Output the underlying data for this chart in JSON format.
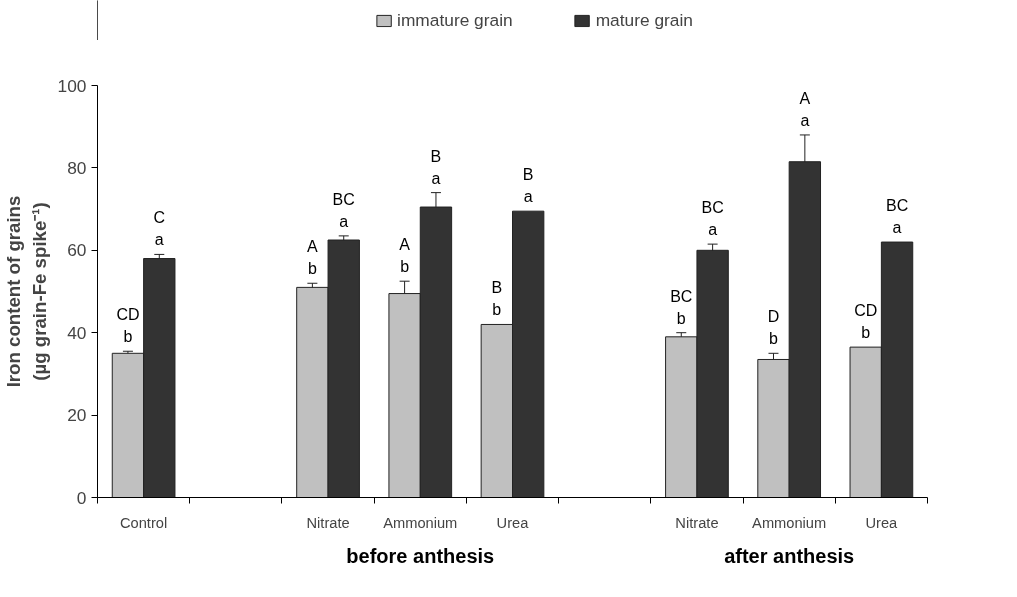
{
  "chart_data": {
    "type": "bar",
    "ylabel": "Iron content of grains\n(µg grain-Fe spike⁻¹)",
    "categories": [
      "Control",
      null,
      "Nitrate",
      "Ammonium",
      "Urea",
      null,
      "Nitrate",
      "Ammonium",
      "Urea"
    ],
    "series": [
      {
        "name": "immature grain",
        "color": "#c0c0c0",
        "values": [
          35,
          null,
          51,
          49.5,
          42,
          null,
          39,
          33.5,
          36.5
        ],
        "errors": [
          0.5,
          null,
          1,
          3,
          null,
          null,
          1,
          1.5,
          null
        ],
        "value_labels": [
          "CD\nb",
          null,
          "A\nb",
          "A\nb",
          "B\nb",
          null,
          "BC\nb",
          "D\nb",
          "CD\nb"
        ]
      },
      {
        "name": "mature grain",
        "color": "#333333",
        "values": [
          58,
          null,
          62.5,
          70.5,
          69.5,
          null,
          60,
          81.5,
          62
        ],
        "errors": [
          1,
          null,
          1,
          3.5,
          null,
          null,
          1.5,
          6.5,
          null
        ],
        "value_labels": [
          "C\na",
          null,
          "BC\na",
          "B\na",
          "B\na",
          null,
          "BC\na",
          "A\na",
          "BC\na"
        ]
      }
    ],
    "ylim": [
      0,
      100
    ],
    "yticks": [
      0,
      20,
      40,
      60,
      80,
      100
    ],
    "grid": false,
    "legend": "top",
    "annotations": [
      "before anthesis",
      "after anthesis"
    ]
  }
}
